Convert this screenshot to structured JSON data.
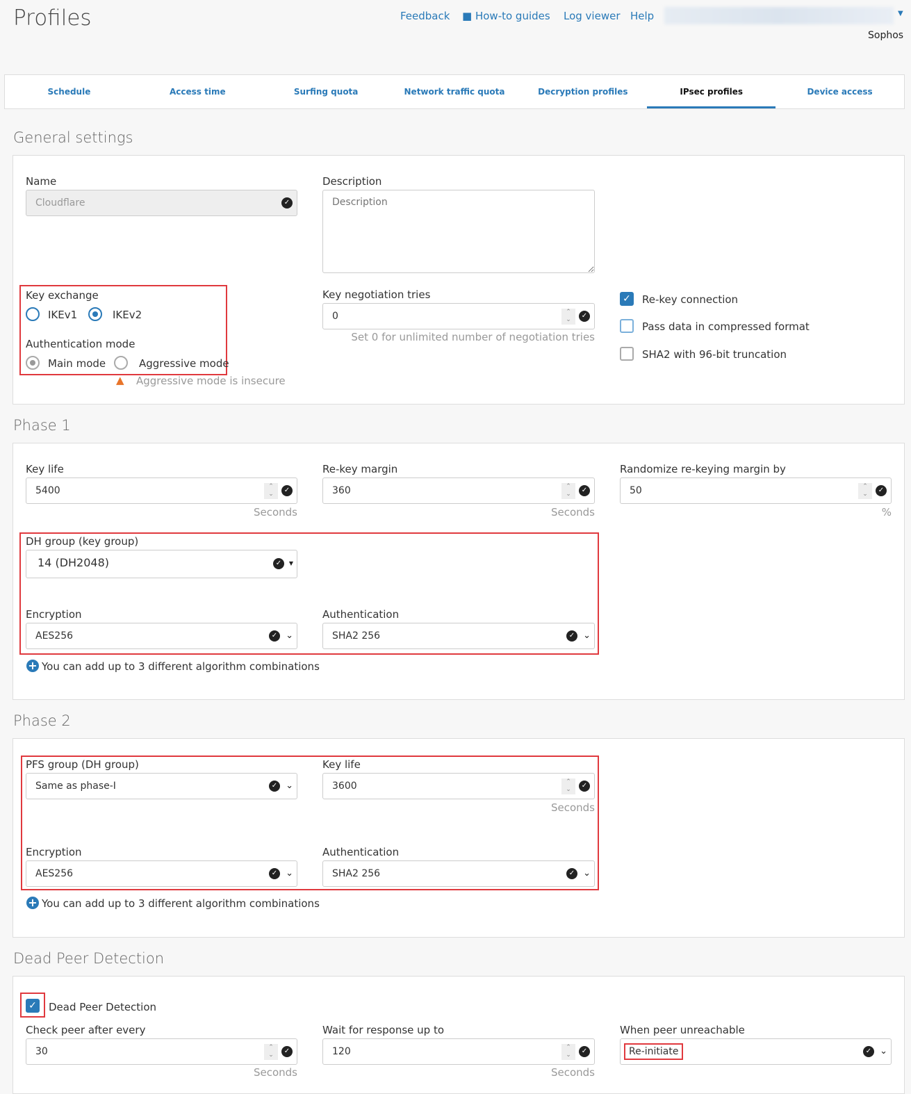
{
  "header": {
    "title": "Profiles",
    "links": [
      "Feedback",
      "How-to guides",
      "Log viewer",
      "Help"
    ],
    "org": "Sophos"
  },
  "tabs": [
    "Schedule",
    "Access time",
    "Surfing quota",
    "Network traffic quota",
    "Decryption profiles",
    "IPsec profiles",
    "Device access"
  ],
  "active_tab": "IPsec profiles",
  "accent": "#2a7ab8",
  "highlight": "#e0393e",
  "general": {
    "heading": "General settings",
    "name_label": "Name",
    "name_value": "Cloudflare",
    "desc_label": "Description",
    "desc_placeholder": "Description",
    "key_exchange_label": "Key exchange",
    "ikev1": "IKEv1",
    "ikev2": "IKEv2",
    "key_exchange_selected": "IKEv2",
    "auth_mode_label": "Authentication mode",
    "main_mode": "Main mode",
    "aggressive_mode": "Aggressive mode",
    "auth_mode_selected": "Main mode",
    "aggressive_warning": "Aggressive mode is insecure",
    "tries_label": "Key negotiation tries",
    "tries_value": "0",
    "tries_hint": "Set 0 for unlimited number of negotiation tries",
    "rekey": {
      "label": "Re-key connection",
      "checked": true
    },
    "compress": {
      "label": "Pass data in compressed format",
      "checked": false
    },
    "sha2": {
      "label": "SHA2 with 96-bit truncation",
      "checked": false
    }
  },
  "phase1": {
    "heading": "Phase 1",
    "keylife_label": "Key life",
    "keylife_value": "5400",
    "rekey_margin_label": "Re-key margin",
    "rekey_margin_value": "360",
    "random_label": "Randomize re-keying margin by",
    "random_value": "50",
    "seconds": "Seconds",
    "percent": "%",
    "dh_label": "DH group (key group)",
    "dh_value": "14 (DH2048)",
    "enc_label": "Encryption",
    "enc_value": "AES256",
    "auth_label": "Authentication",
    "auth_value": "SHA2 256",
    "add_text": "You can add up to 3 different algorithm combinations"
  },
  "phase2": {
    "heading": "Phase 2",
    "pfs_label": "PFS group (DH group)",
    "pfs_value": "Same as phase-I",
    "keylife_label": "Key life",
    "keylife_value": "3600",
    "seconds": "Seconds",
    "enc_label": "Encryption",
    "enc_value": "AES256",
    "auth_label": "Authentication",
    "auth_value": "SHA2 256",
    "add_text": "You can add up to 3 different algorithm combinations"
  },
  "dpd": {
    "heading": "Dead Peer Detection",
    "checkbox_label": "Dead Peer Detection",
    "checked": true,
    "check_label": "Check peer after every",
    "check_value": "30",
    "wait_label": "Wait for response up to",
    "wait_value": "120",
    "seconds": "Seconds",
    "unreach_label": "When peer unreachable",
    "unreach_value": "Re-initiate"
  }
}
